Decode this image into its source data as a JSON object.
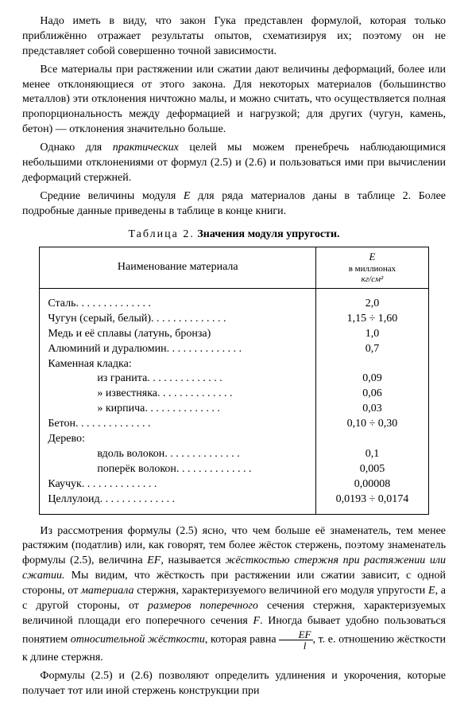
{
  "paragraphs": {
    "p1": "Надо иметь в виду, что закон Гука представлен формулой, которая только приближённо отражает результаты опытов, схематизируя их; поэтому он не представляет собой совершенно точной зависимости.",
    "p2": "Все материалы при растяжении или сжатии дают величины деформаций, более или менее отклоняющиеся от этого закона. Для некоторых материалов (большинство металлов) эти отклонения ничтожно малы, и можно считать, что осуществляется полная пропорциональность между деформацией и нагрузкой; для других (чугун, камень, бетон) — отклонения значительно больше.",
    "p3_a": "Однако для ",
    "p3_it": "практических",
    "p3_b": " целей мы можем пренебречь наблюдающимися небольшими отклонениями от формул (2.5) и (2.6) и пользоваться ими при вычислении деформаций стержней.",
    "p4_a": "Средние величины модуля ",
    "p4_E": "E",
    "p4_b": " для ряда материалов даны в таблице 2. Более подробные данные приведены в таблице в конце книги.",
    "p5_a": "Из рассмотрения формулы (2.5) ясно, что чем больше её знаменатель, тем менее растяжим (податлив) или, как говорят, тем более жёсток стержень, поэтому знаменатель формулы (2.5), величина ",
    "p5_EF": "EF",
    "p5_b": ", называется ",
    "p5_it1": "жёсткостью стержня при растяжении или сжатии.",
    "p5_c": " Мы видим, что жёсткость при растяжении или сжатии зависит, с одной стороны, от ",
    "p5_it2": "материала",
    "p5_d": " стержня, характеризуемого величиной его модуля упругости ",
    "p5_E": "E",
    "p5_e": ", а с другой стороны, от ",
    "p5_it3": "размеров поперечного",
    "p5_f": " сечения стержня, характеризуемых величиной площади его поперечного сечения ",
    "p5_F": "F",
    "p5_g": ". Иногда бывает удобно пользоваться понятием ",
    "p5_it4": "относительной жёсткости",
    "p5_h": ", которая равна ",
    "p5_frac_top": "EF",
    "p5_frac_bot": "l",
    "p5_i": ", т. е. отношению жёсткости к длине стержня.",
    "p6": "Формулы (2.5) и (2.6) позволяют определить удлинения и укорочения, которые получает тот или иной стержень конструкции при"
  },
  "table": {
    "caption_label": "Таблица  2.",
    "caption_title": "Значения модуля упругости.",
    "header_name": "Наименование материала",
    "header_E": "E",
    "header_E_sub": "в миллионах",
    "header_E_unit": "кг/см²",
    "rows": [
      {
        "indent": 0,
        "label": "Сталь",
        "dots": true,
        "value": "2,0"
      },
      {
        "indent": 0,
        "label": "Чугун (серый, белый)",
        "dots": true,
        "value": "1,15 ÷ 1,60"
      },
      {
        "indent": 0,
        "label": "Медь и её сплавы (латунь, бронза)",
        "dots": false,
        "value": "1,0"
      },
      {
        "indent": 0,
        "label": "Алюминий и дуралюмин",
        "dots": true,
        "value": "0,7"
      },
      {
        "indent": 0,
        "label": "Каменная кладка:",
        "dots": false,
        "value": ""
      },
      {
        "indent": 1,
        "label": "из гранита",
        "dots": true,
        "value": "0,09"
      },
      {
        "indent": 1,
        "label": "»  известняка",
        "dots": true,
        "value": "0,06"
      },
      {
        "indent": 1,
        "label": "»  кирпича",
        "dots": true,
        "value": "0,03"
      },
      {
        "indent": 0,
        "label": "Бетон",
        "dots": true,
        "value": "0,10 ÷ 0,30"
      },
      {
        "indent": 0,
        "label": "Дерево:",
        "dots": false,
        "value": ""
      },
      {
        "indent": 1,
        "label": "вдоль волокон",
        "dots": true,
        "value": "0,1"
      },
      {
        "indent": 1,
        "label": "поперёк волокон",
        "dots": true,
        "value": "0,005"
      },
      {
        "indent": 0,
        "label": "Каучук",
        "dots": true,
        "value": "0,00008"
      },
      {
        "indent": 0,
        "label": "Целлулоид",
        "dots": true,
        "value": "0,0193 ÷ 0,0174"
      }
    ]
  }
}
